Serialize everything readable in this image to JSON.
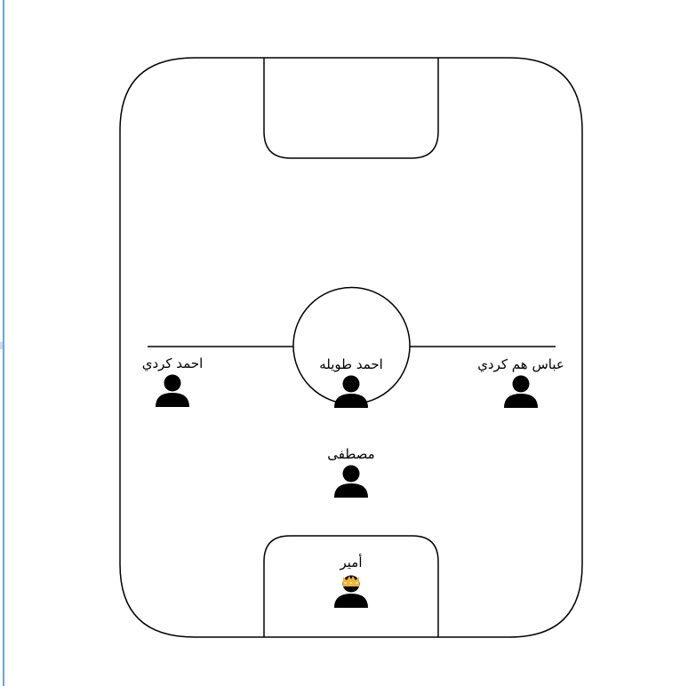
{
  "lineup": {
    "players": [
      {
        "id": "left-player",
        "name": "احمد كردي"
      },
      {
        "id": "center-player",
        "name": "احمد طويله"
      },
      {
        "id": "right-player",
        "name": "عباس هم كردي"
      },
      {
        "id": "midfield-player",
        "name": "مصطفى"
      },
      {
        "id": "goalkeeper",
        "name": "أمير",
        "badge": "crown-icon"
      }
    ]
  },
  "colors": {
    "line": "#000000",
    "player_icon": "#000000",
    "crown": "#f2b533",
    "edge_accent": "#61a8e8"
  }
}
